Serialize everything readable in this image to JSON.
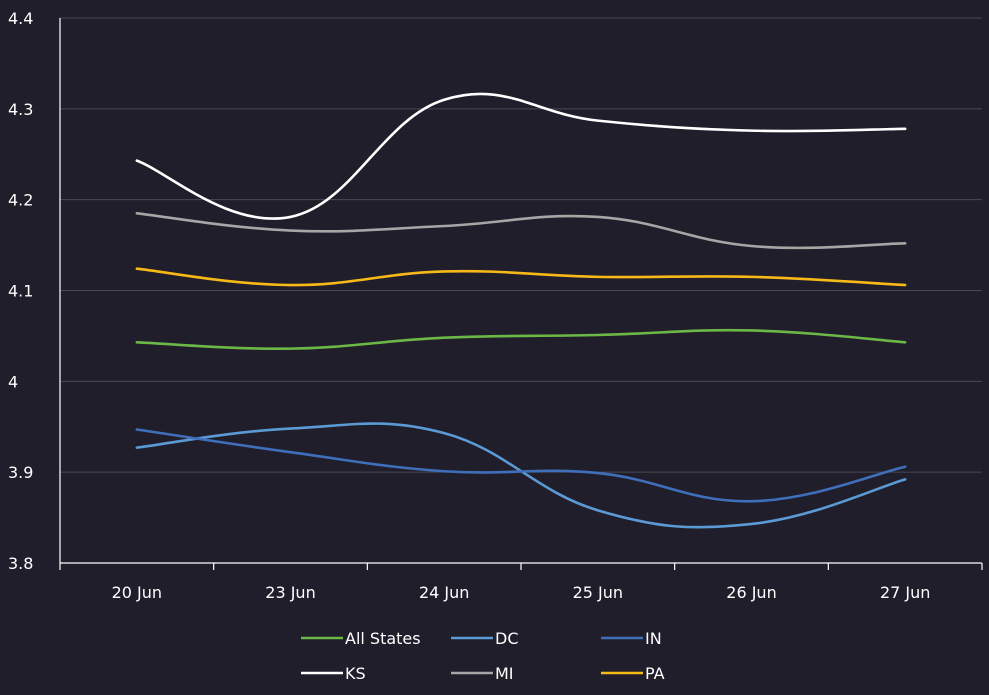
{
  "chart_data": {
    "type": "line",
    "title": "",
    "xlabel": "",
    "ylabel": "",
    "categories": [
      "20 Jun",
      "23 Jun",
      "24 Jun",
      "25 Jun",
      "26 Jun",
      "27 Jun"
    ],
    "ylim": [
      3.8,
      4.4
    ],
    "yticks": [
      3.8,
      3.9,
      4,
      4.1,
      4.2,
      4.3,
      4.4
    ],
    "ytick_labels": [
      "3.8",
      "3.9",
      "4",
      "4.1",
      "4.2",
      "4.3",
      "4.4"
    ],
    "grid": "horizontal",
    "legend_position": "bottom",
    "smooth": true,
    "series": [
      {
        "name": "All States",
        "color": "#6cb846",
        "values": [
          4.043,
          4.036,
          4.048,
          4.051,
          4.056,
          4.043
        ]
      },
      {
        "name": "DC",
        "color": "#5b9ad5",
        "values": [
          3.927,
          3.948,
          3.943,
          3.858,
          3.843,
          3.892
        ]
      },
      {
        "name": "IN",
        "color": "#3f6fbb",
        "values": [
          3.947,
          3.922,
          3.901,
          3.899,
          3.868,
          3.906
        ]
      },
      {
        "name": "KS",
        "color": "#ffffff",
        "values": [
          4.243,
          4.181,
          4.31,
          4.287,
          4.276,
          4.278
        ]
      },
      {
        "name": "MI",
        "color": "#a6a6a6",
        "values": [
          4.185,
          4.166,
          4.171,
          4.181,
          4.149,
          4.152
        ]
      },
      {
        "name": "PA",
        "color": "#f7b917",
        "values": [
          4.124,
          4.106,
          4.121,
          4.115,
          4.115,
          4.106
        ]
      }
    ]
  }
}
